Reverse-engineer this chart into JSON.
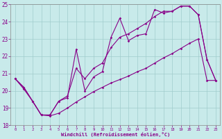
{
  "xlabel": "Windchill (Refroidissement éolien,°C)",
  "x": [
    0,
    1,
    2,
    3,
    4,
    5,
    6,
    7,
    8,
    9,
    10,
    11,
    12,
    13,
    14,
    15,
    16,
    17,
    18,
    19,
    20,
    21,
    22,
    23
  ],
  "line_spiky": [
    20.7,
    20.2,
    19.4,
    18.6,
    18.6,
    19.4,
    19.6,
    22.4,
    20.0,
    20.8,
    21.1,
    23.1,
    24.2,
    22.9,
    23.2,
    23.3,
    24.7,
    24.5,
    24.6,
    24.9,
    24.9,
    24.4,
    21.8,
    20.6
  ],
  "line_smooth": [
    20.7,
    20.2,
    19.4,
    18.6,
    18.6,
    19.4,
    19.7,
    21.3,
    20.7,
    21.3,
    21.6,
    22.5,
    23.1,
    23.3,
    23.6,
    23.9,
    24.3,
    24.6,
    24.6,
    24.9,
    24.9,
    24.4,
    21.8,
    20.6
  ],
  "line_lower": [
    20.7,
    20.1,
    19.4,
    18.6,
    18.55,
    18.7,
    19.0,
    19.35,
    19.65,
    19.95,
    20.2,
    20.45,
    20.65,
    20.85,
    21.1,
    21.3,
    21.6,
    21.9,
    22.15,
    22.45,
    22.75,
    23.0,
    20.6,
    20.6
  ],
  "ylim": [
    18,
    25
  ],
  "xlim_min": -0.5,
  "xlim_max": 23.5,
  "yticks": [
    18,
    19,
    20,
    21,
    22,
    23,
    24,
    25
  ],
  "xticks": [
    0,
    1,
    2,
    3,
    4,
    5,
    6,
    7,
    8,
    9,
    10,
    11,
    12,
    13,
    14,
    15,
    16,
    17,
    18,
    19,
    20,
    21,
    22,
    23
  ],
  "line_color": "#880088",
  "bg_color": "#c8eaea",
  "grid_color": "#a0cccc",
  "font_color": "#880088",
  "spine_color": "#888888"
}
